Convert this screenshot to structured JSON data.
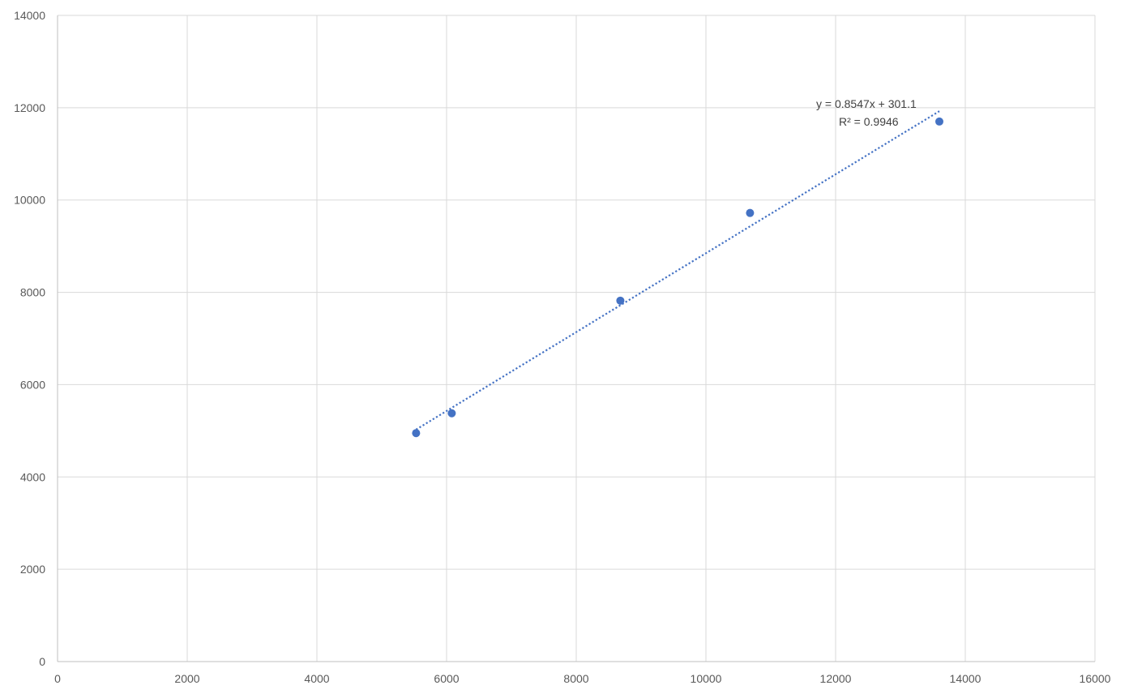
{
  "chart_data": {
    "type": "scatter",
    "title": "",
    "xlabel": "",
    "ylabel": "",
    "xlim": [
      0,
      16000
    ],
    "ylim": [
      0,
      14000
    ],
    "x_ticks": [
      0,
      2000,
      4000,
      6000,
      8000,
      10000,
      12000,
      14000,
      16000
    ],
    "y_ticks": [
      0,
      2000,
      4000,
      6000,
      8000,
      10000,
      12000,
      14000
    ],
    "x_tick_labels": [
      "0",
      "2000",
      "4000",
      "6000",
      "8000",
      "10000",
      "12000",
      "14000",
      "16000"
    ],
    "y_tick_labels": [
      "0",
      "2000",
      "4000",
      "6000",
      "8000",
      "10000",
      "12000",
      "14000"
    ],
    "grid": true,
    "legend": "none",
    "series": [
      {
        "color": "#4472c4",
        "x": [
          5530,
          6080,
          8680,
          10680,
          13600
        ],
        "y": [
          4950,
          5380,
          7820,
          9720,
          11700
        ]
      }
    ],
    "trendline": {
      "type": "linear",
      "style": "dotted",
      "color": "#4472c4",
      "slope": 0.8547,
      "intercept": 301.1,
      "x_range": [
        5530,
        13600
      ],
      "equation": "y = 0.8547x + 301.1",
      "r_squared": "R² = 0.9946"
    }
  }
}
